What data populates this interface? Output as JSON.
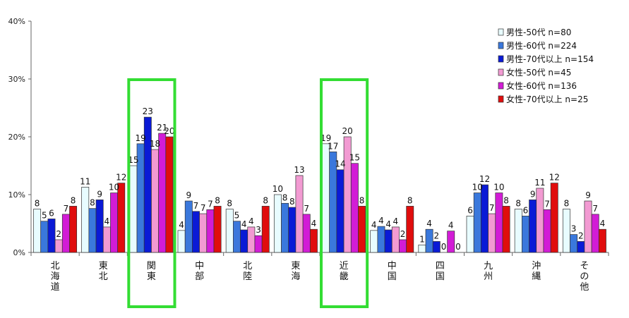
{
  "chart_data": {
    "type": "bar",
    "title": "",
    "xlabel": "",
    "ylabel": "",
    "ylim": [
      0,
      40
    ],
    "yticks": [
      "0%",
      "10%",
      "20%",
      "30%",
      "40%"
    ],
    "categories": [
      "北海道",
      "東北",
      "関東",
      "中部",
      "北陸",
      "東海",
      "近畿",
      "中国",
      "四国",
      "九州",
      "沖縄",
      "その他"
    ],
    "highlighted_categories": [
      "関東",
      "近畿"
    ],
    "highlight_color": "#33dd33",
    "legend_position": "top-right",
    "grid": false,
    "series": [
      {
        "name": "男性-50代 n=80",
        "color": "#e8fcff",
        "values": [
          7.5,
          11.3,
          15.0,
          3.8,
          7.5,
          10.0,
          18.8,
          3.8,
          1.3,
          6.3,
          7.5,
          7.5
        ],
        "labels": [
          "8",
          "11",
          "15",
          "4",
          "8",
          "10",
          "19",
          "4",
          "1",
          "6",
          "8",
          "8"
        ]
      },
      {
        "name": "男性-60代 n=224",
        "color": "#3a78dc",
        "values": [
          5.4,
          7.6,
          18.8,
          8.9,
          5.4,
          8.5,
          17.4,
          4.5,
          4.0,
          10.3,
          6.3,
          3.1
        ],
        "labels": [
          "5",
          "8",
          "19",
          "9",
          "5",
          "8",
          "17",
          "4",
          "4",
          "10",
          "6",
          "3"
        ]
      },
      {
        "name": "男性-70代以上 n=154",
        "color": "#0a1ad6",
        "values": [
          5.8,
          9.1,
          23.4,
          7.1,
          3.9,
          7.8,
          14.3,
          3.9,
          1.9,
          11.7,
          9.1,
          1.9
        ],
        "labels": [
          "6",
          "9",
          "23",
          "7",
          "4",
          "8",
          "14",
          "4",
          "2",
          "12",
          "9",
          "2"
        ]
      },
      {
        "name": "女性-50代 n=45",
        "color": "#f29ad2",
        "values": [
          2.2,
          4.4,
          17.8,
          6.7,
          4.4,
          13.3,
          20.0,
          4.4,
          0.0,
          6.7,
          11.1,
          8.9
        ],
        "labels": [
          "2",
          "4",
          "18",
          "7",
          "4",
          "13",
          "20",
          "4",
          "0",
          "7",
          "11",
          "9"
        ]
      },
      {
        "name": "女性-60代 n=136",
        "color": "#d21cd6",
        "values": [
          6.6,
          10.3,
          20.6,
          7.4,
          2.9,
          6.6,
          15.4,
          2.2,
          3.7,
          10.3,
          7.4,
          6.6
        ],
        "labels": [
          "7",
          "10",
          "21",
          "7",
          "3",
          "7",
          "15",
          "2",
          "4",
          "10",
          "7",
          "7"
        ]
      },
      {
        "name": "女性-70代以上 n=25",
        "color": "#e00d0d",
        "values": [
          8.0,
          12.0,
          20.0,
          8.0,
          8.0,
          4.0,
          8.0,
          8.0,
          0.0,
          8.0,
          12.0,
          4.0
        ],
        "labels": [
          "8",
          "12",
          "20",
          "8",
          "8",
          "4",
          "8",
          "8",
          "0",
          "8",
          "12",
          "4"
        ]
      }
    ]
  }
}
